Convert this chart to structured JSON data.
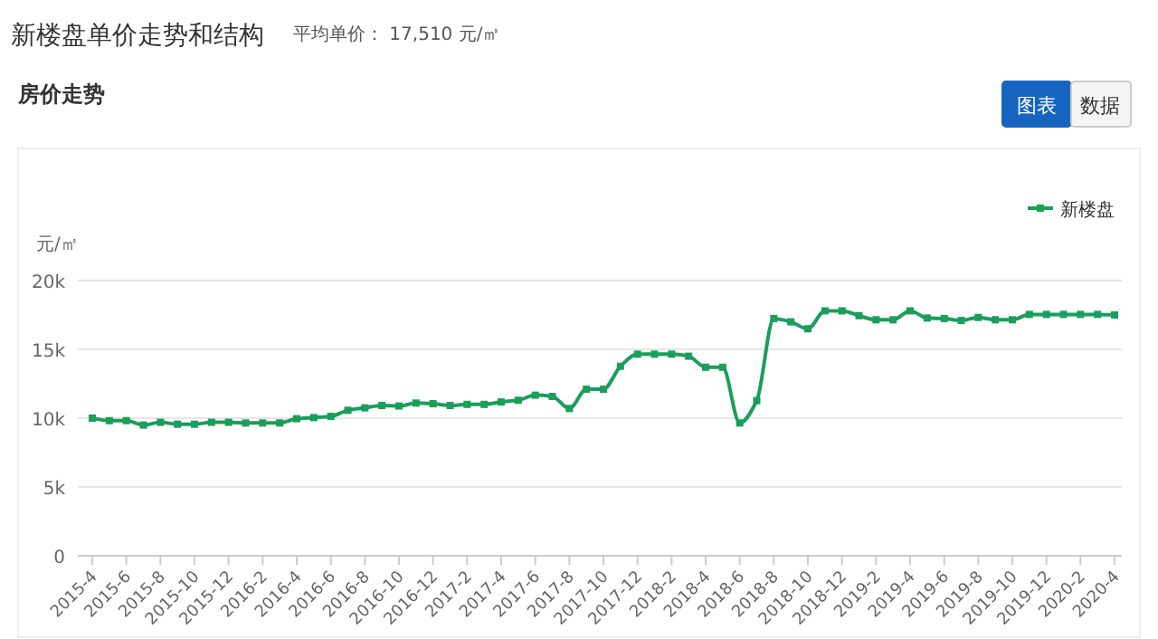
{
  "chart_data": {
    "type": "line",
    "title": "新楼盘单价走势和结构",
    "subtitle": "平均单价： 17,510 元/㎡",
    "annotations": [
      "房价走势",
      "图表",
      "数据"
    ],
    "ylabel": "元/㎡",
    "categories": [
      "2015-4",
      null,
      "2015-6",
      null,
      "2015-8",
      null,
      "2015-10",
      null,
      "2015-12",
      null,
      "2016-2",
      null,
      "2016-4",
      null,
      "2016-6",
      null,
      "2016-8",
      null,
      "2016-10",
      null,
      "2016-12",
      null,
      "2017-2",
      null,
      "2017-4",
      null,
      "2017-6",
      null,
      "2017-8",
      null,
      "2017-10",
      null,
      "2017-12",
      null,
      "2018-2",
      null,
      "2018-4",
      null,
      "2018-6",
      null,
      "2018-8",
      null,
      "2018-10",
      null,
      "2018-12",
      null,
      "2019-2",
      null,
      "2019-4",
      null,
      "2019-6",
      null,
      "2019-8",
      null,
      "2019-10",
      null,
      "2019-12",
      null,
      "2020-2",
      null,
      "2020-4"
    ],
    "series": [
      {
        "name": "新楼盘",
        "color": "#1a9e5c",
        "values": [
          10000,
          9820,
          9820,
          9500,
          9700,
          9560,
          9560,
          9700,
          9700,
          9650,
          9650,
          9650,
          9960,
          10040,
          10130,
          10570,
          10750,
          10920,
          10880,
          11100,
          11050,
          10920,
          11000,
          11000,
          11180,
          11300,
          11670,
          11580,
          10700,
          12100,
          12100,
          13770,
          14650,
          14650,
          14650,
          14500,
          13700,
          13700,
          9650,
          11270,
          17240,
          17000,
          16500,
          17800,
          17800,
          17450,
          17150,
          17150,
          17800,
          17280,
          17240,
          17100,
          17320,
          17150,
          17150,
          17540,
          17540,
          17540,
          17540,
          17540,
          17500
        ]
      }
    ],
    "ylim": [
      0,
      20000
    ],
    "yticks": [
      {
        "value": 0,
        "label": "0"
      },
      {
        "value": 5000,
        "label": "5k"
      },
      {
        "value": 10000,
        "label": "10k"
      },
      {
        "value": 15000,
        "label": "15k"
      },
      {
        "value": 20000,
        "label": "20k"
      }
    ],
    "grid": "y",
    "legend": "top right",
    "marker": "square",
    "line_style": "solid"
  }
}
